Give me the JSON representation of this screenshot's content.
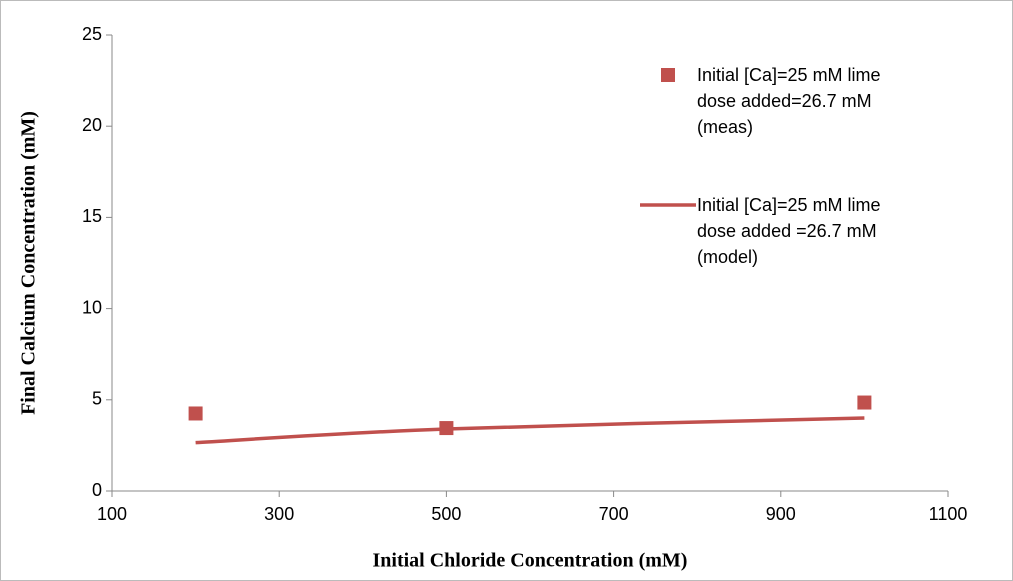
{
  "chart_data": {
    "type": "scatter",
    "x_label": "Initial Chloride Concentration (mM)",
    "y_label": "Final Calcium Concentration (mM)",
    "xlim": [
      100,
      1100
    ],
    "xticks": [
      100,
      300,
      500,
      700,
      900,
      1100
    ],
    "ylim": [
      0,
      25
    ],
    "yticks": [
      0,
      5,
      10,
      15,
      20,
      25
    ],
    "series": [
      {
        "name": "Initial [Ca]=25 mM lime dose added=26.7 mM  (meas)",
        "type": "scatter",
        "color": "#c0504d",
        "x": [
          200,
          500,
          1000
        ],
        "values": [
          4.25,
          3.45,
          4.85
        ]
      },
      {
        "name": "Initial [Ca]=25 mM lime dose added =26.7 mM  (model)",
        "type": "line",
        "color": "#c0504d",
        "x": [
          200,
          500,
          1000
        ],
        "values": [
          2.65,
          3.4,
          4.0
        ]
      }
    ]
  }
}
